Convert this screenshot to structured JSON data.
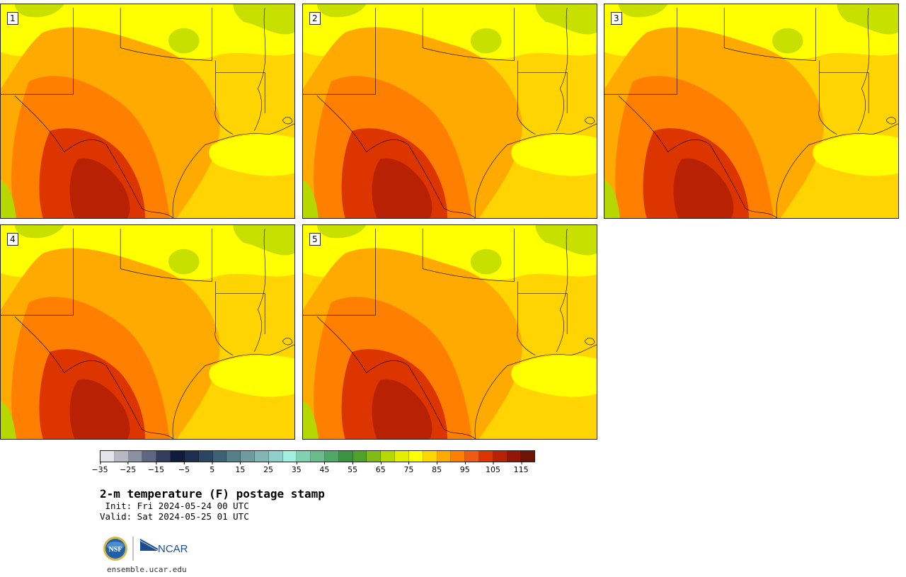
{
  "stamps": [
    {
      "label": "1"
    },
    {
      "label": "2"
    },
    {
      "label": "3"
    },
    {
      "label": "4"
    },
    {
      "label": "5"
    }
  ],
  "colorbar": {
    "colors": [
      "#e3e5ea",
      "#b6b9c4",
      "#8b91a3",
      "#5d6683",
      "#333d5c",
      "#0f1c3a",
      "#1c2f4f",
      "#2a4762",
      "#3d6275",
      "#567f89",
      "#6e9b9e",
      "#81b6b4",
      "#8fd1c9",
      "#9ff0df",
      "#7fd2b0",
      "#69bd8b",
      "#4fa866",
      "#3a9340",
      "#4da227",
      "#7ebc17",
      "#b5d800",
      "#e4ee00",
      "#ffff00",
      "#ffd700",
      "#ffaa00",
      "#ff7f00",
      "#f05a12",
      "#dc3500",
      "#b82104",
      "#921505",
      "#6e1407"
    ],
    "tick_labels": [
      "−35",
      "−25",
      "−15",
      "−5",
      "5",
      "15",
      "25",
      "35",
      "45",
      "55",
      "65",
      "75",
      "85",
      "95",
      "105",
      "115"
    ]
  },
  "title": "2-m temperature (F) postage stamp",
  "init": " Init: Fri 2024-05-24 00 UTC",
  "valid": "Valid: Sat 2024-05-25 01 UTC",
  "logos": {
    "nsf_text": "NSF",
    "ncar_text": "NCAR"
  },
  "url": "ensemble.ucar.edu"
}
